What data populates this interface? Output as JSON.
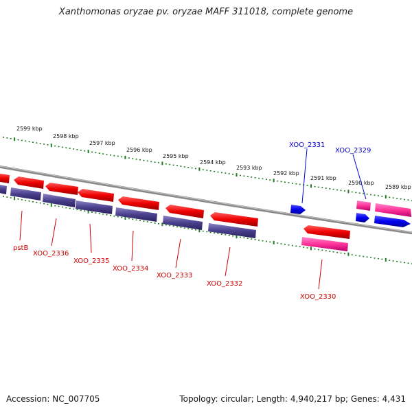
{
  "title": "Xanthomonas oryzae pv. oryzae MAFF 311018, complete genome",
  "footer": {
    "accession": "Accession: NC_007705",
    "summary": "Topology: circular; Length: 4,940,217 bp; Genes: 4,431"
  },
  "colors": {
    "backbone": "#8a8a8a",
    "tick": "#1f7a1f",
    "forward_label": "#0000cc",
    "reverse_label": "#cc0000",
    "red_gene": "#ee0000",
    "navy_gene": "#4a3f8c",
    "blue_gene": "#0000ee",
    "pink_gene": "#ff3399"
  },
  "ruler": {
    "labels": [
      "2599 kbp",
      "2598 kbp",
      "2597 kbp",
      "2596 kbp",
      "2595 kbp",
      "2594 kbp",
      "2593 kbp",
      "2592 kbp",
      "2591 kbp",
      "2590 kbp",
      "2589 kbp"
    ]
  },
  "gene_labels": [
    {
      "name": "XOO_2331",
      "strand": "forward"
    },
    {
      "name": "XOO_2329",
      "strand": "forward"
    },
    {
      "name": "pstB",
      "strand": "reverse"
    },
    {
      "name": "XOO_2336",
      "strand": "reverse"
    },
    {
      "name": "XOO_2335",
      "strand": "reverse"
    },
    {
      "name": "XOO_2334",
      "strand": "reverse"
    },
    {
      "name": "XOO_2333",
      "strand": "reverse"
    },
    {
      "name": "XOO_2332",
      "strand": "reverse"
    },
    {
      "name": "XOO_2330",
      "strand": "reverse"
    }
  ]
}
